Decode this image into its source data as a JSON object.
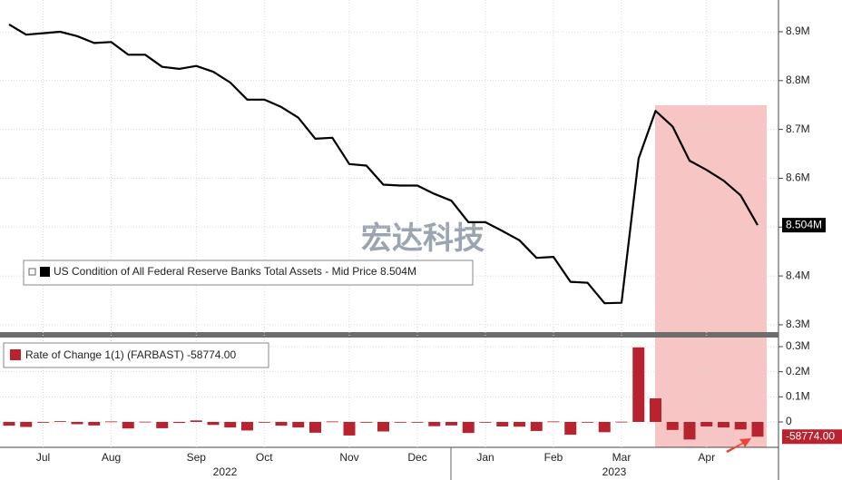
{
  "chart_data": [
    {
      "type": "line",
      "watermark": "宏达科技",
      "series": [
        {
          "name": "US Condition of All Federal Reserve Banks Total Assets - Mid Price",
          "color": "#000000",
          "values": [
            8.915,
            8.894,
            8.897,
            8.9,
            8.891,
            8.877,
            8.879,
            8.853,
            8.853,
            8.828,
            8.824,
            8.83,
            8.818,
            8.796,
            8.761,
            8.761,
            8.746,
            8.724,
            8.681,
            8.683,
            8.629,
            8.626,
            8.587,
            8.585,
            8.585,
            8.568,
            8.554,
            8.51,
            8.51,
            8.492,
            8.473,
            8.437,
            8.439,
            8.388,
            8.386,
            8.344,
            8.345,
            8.64,
            8.738,
            8.706,
            8.636,
            8.617,
            8.595,
            8.565,
            8.504
          ],
          "value_labels": [
            null,
            null,
            null,
            null,
            null,
            null,
            null,
            null,
            null,
            null,
            null,
            null,
            null,
            null,
            null,
            null,
            null,
            null,
            null,
            null,
            null,
            null,
            null,
            null,
            null,
            null,
            null,
            null,
            null,
            null,
            null,
            null,
            null,
            null,
            null,
            null,
            null,
            null,
            null,
            null,
            null,
            null,
            null,
            null,
            "8.504M"
          ]
        }
      ],
      "ylim": [
        8.285,
        8.965
      ],
      "yticks": [
        {
          "value": 8.3,
          "label": "8.3M"
        },
        {
          "value": 8.4,
          "label": "8.4M"
        },
        {
          "value": 8.5,
          "label": "8.5M"
        },
        {
          "value": 8.6,
          "label": "8.6M"
        },
        {
          "value": 8.7,
          "label": "8.7M"
        },
        {
          "value": 8.8,
          "label": "8.8M"
        },
        {
          "value": 8.9,
          "label": "8.9M"
        }
      ],
      "grid": true
    },
    {
      "type": "bar",
      "categories": [
        null,
        null,
        "Jul",
        null,
        null,
        null,
        "Aug",
        null,
        null,
        null,
        null,
        "Sep",
        null,
        null,
        null,
        "Oct",
        null,
        null,
        null,
        null,
        "Nov",
        null,
        null,
        null,
        "Dec",
        null,
        null,
        null,
        "Jan",
        null,
        null,
        null,
        "Feb",
        null,
        null,
        null,
        "Mar",
        null,
        null,
        null,
        null,
        "Apr",
        null,
        null,
        null
      ],
      "annotations": [
        "2022",
        "2023"
      ],
      "series": [
        {
          "name": "Rate of Change 1(1) (FARBAST)",
          "color": "#b8232f",
          "values": [
            -15000,
            -20000,
            -3000,
            3000,
            -9000,
            -14000,
            2000,
            -26000,
            1000,
            -25000,
            -4000,
            6000,
            -12000,
            -22000,
            -34000,
            0,
            -15000,
            -22000,
            -43000,
            2000,
            -54000,
            -3000,
            -38000,
            -2000,
            0,
            -17000,
            -14000,
            -44000,
            0,
            -18000,
            -19000,
            -36000,
            2000,
            -51000,
            -2000,
            -41000,
            1000,
            297000,
            94000,
            -32000,
            -70000,
            -18000,
            -22000,
            -30000,
            -58774
          ],
          "value_labels": [
            null,
            null,
            null,
            null,
            null,
            null,
            null,
            null,
            null,
            null,
            null,
            null,
            null,
            null,
            null,
            null,
            null,
            null,
            null,
            null,
            null,
            null,
            null,
            null,
            null,
            null,
            null,
            null,
            null,
            null,
            null,
            null,
            null,
            null,
            null,
            null,
            null,
            null,
            null,
            null,
            null,
            null,
            null,
            null,
            "-58774.00"
          ]
        }
      ],
      "ylim": [
        -101200,
        328900
      ],
      "yticks": [
        0,
        {
          "value": 100000,
          "label": "0.1M"
        },
        {
          "value": 200000,
          "label": "0.2M"
        },
        {
          "value": 300000,
          "label": "0.3M"
        }
      ],
      "grid": true
    }
  ]
}
